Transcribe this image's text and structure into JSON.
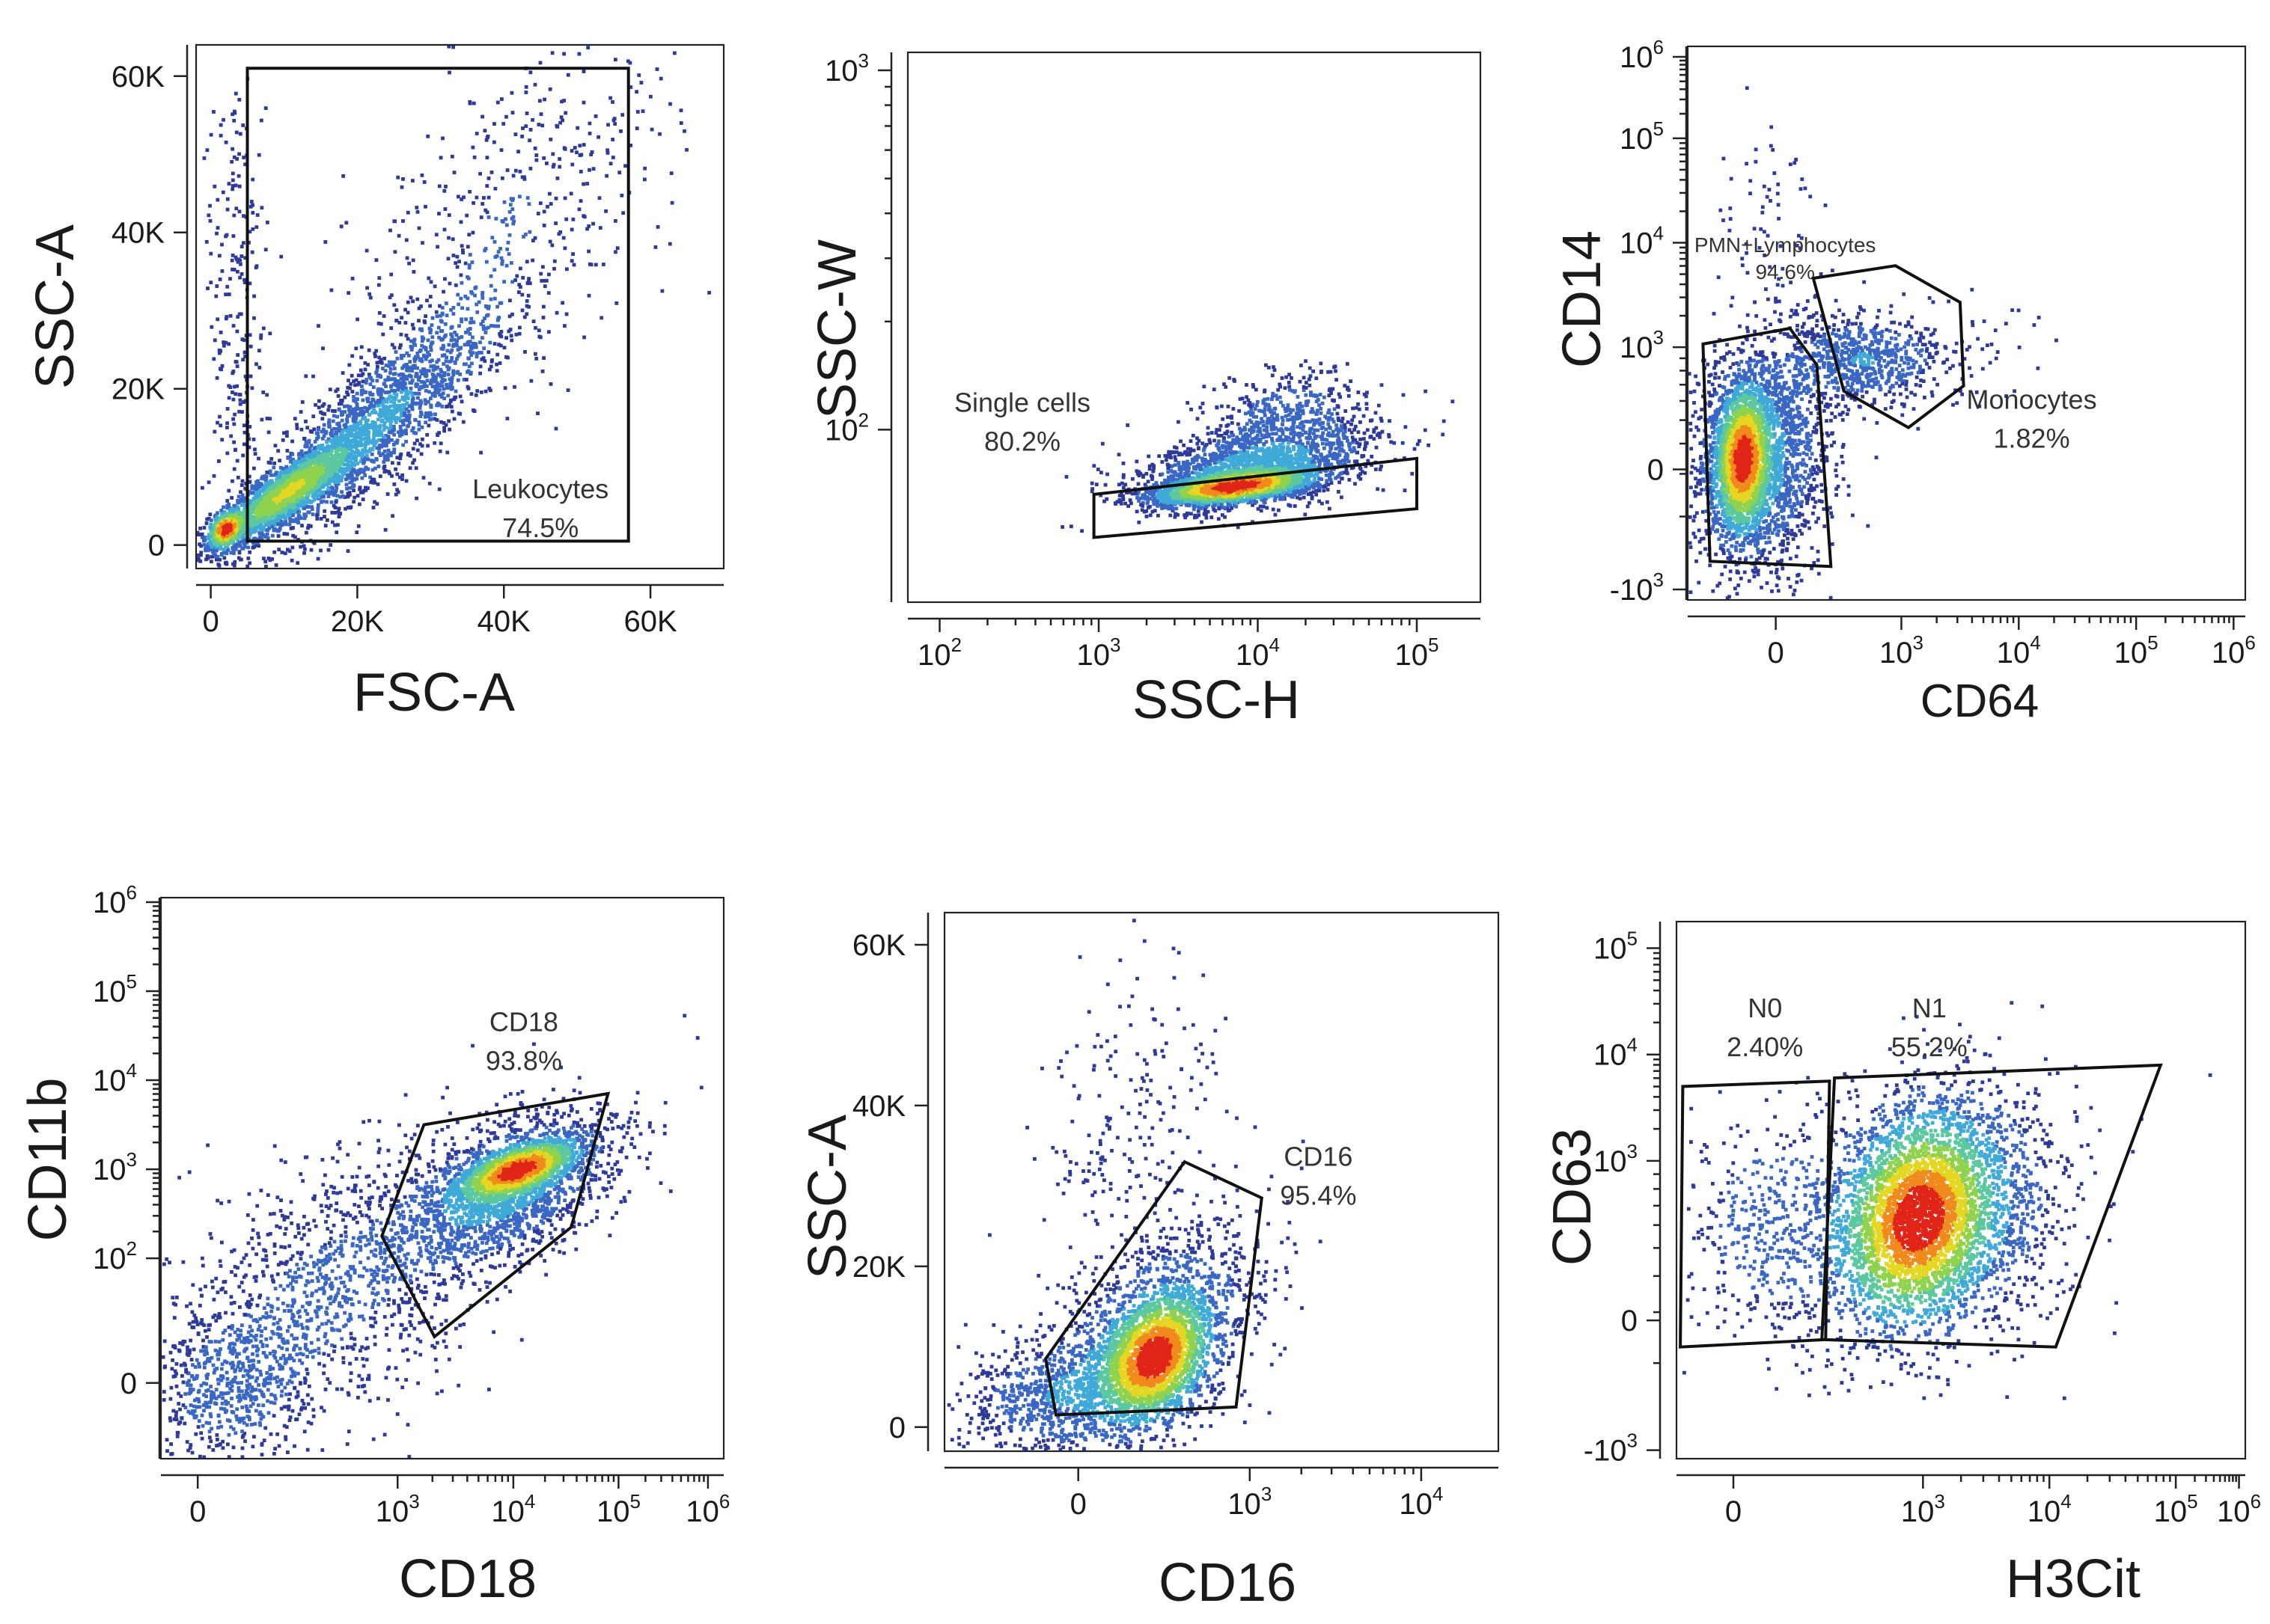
{
  "figure": {
    "colormap": [
      "#2e3a9a",
      "#3a67c4",
      "#3fa9d8",
      "#5cc8a0",
      "#8ed24e",
      "#e3d724",
      "#f08a1c",
      "#e02417"
    ],
    "frame_color": "#222222",
    "gate_color": "#111111"
  },
  "chart_data": [
    {
      "id": "p1",
      "type": "scatter",
      "subtype": "density-dot-plot",
      "xlabel": "FSC-A",
      "ylabel": "SSC-A",
      "xscale": "linear",
      "yscale": "linear",
      "xlim": [
        -2000,
        70000
      ],
      "ylim": [
        -3000,
        64000
      ],
      "xticks": [
        {
          "v": 0,
          "t": "0"
        },
        {
          "v": 20000,
          "t": "20K"
        },
        {
          "v": 40000,
          "t": "40K"
        },
        {
          "v": 60000,
          "t": "60K"
        }
      ],
      "yticks": [
        {
          "v": 0,
          "t": "0"
        },
        {
          "v": 20000,
          "t": "20K"
        },
        {
          "v": 40000,
          "t": "40K"
        },
        {
          "v": 60000,
          "t": "60K"
        }
      ],
      "left_axis": true,
      "gates": [
        {
          "name": "Leukocytes",
          "pct": "74.5%",
          "vertices": [
            [
              5000,
              61000
            ],
            [
              57000,
              61000
            ],
            [
              57000,
              500
            ],
            [
              5000,
              500
            ]
          ],
          "label_at": [
            45000,
            6000
          ]
        }
      ],
      "populations": [
        {
          "n": 2000,
          "cx": 10000,
          "cy": 6500,
          "sx": 5000,
          "sy": 3500,
          "rho": 0.85,
          "w": 3
        },
        {
          "n": 1800,
          "cx": 22000,
          "cy": 15000,
          "sx": 9000,
          "sy": 8000,
          "rho": 0.85,
          "w": 1
        },
        {
          "n": 500,
          "cx": 40000,
          "cy": 40000,
          "sx": 12000,
          "sy": 13000,
          "rho": 0.6,
          "w": 0.4
        },
        {
          "n": 300,
          "cx": 2000,
          "cy": 2000,
          "sx": 1200,
          "sy": 1200,
          "rho": 0.3,
          "w": 5
        },
        {
          "n": 250,
          "cx": 3500,
          "cy": 30000,
          "sx": 2000,
          "sy": 18000,
          "rho": 0.0,
          "w": 0.3
        }
      ]
    },
    {
      "id": "p2",
      "type": "scatter",
      "subtype": "density-dot-plot",
      "xlabel": "SSC-H",
      "ylabel": "SSC-W",
      "xscale": "log",
      "yscale": "log",
      "xlim": [
        1.8,
        5.4
      ],
      "ylim": [
        1.52,
        3.05
      ],
      "xticks": [
        {
          "v": 2,
          "t": "10",
          "sup": "2"
        },
        {
          "v": 3,
          "t": "10",
          "sup": "3"
        },
        {
          "v": 4,
          "t": "10",
          "sup": "4"
        },
        {
          "v": 5,
          "t": "10",
          "sup": "5"
        }
      ],
      "yticks": [
        {
          "v": 2,
          "t": "10",
          "sup": "2"
        },
        {
          "v": 3,
          "t": "10",
          "sup": "3"
        }
      ],
      "left_axis": false,
      "gates": [
        {
          "name": "Single cells",
          "pct": "80.2%",
          "vertices": [
            [
              2.97,
              1.82
            ],
            [
              5.0,
              1.92
            ],
            [
              5.0,
              1.78
            ],
            [
              2.97,
              1.7
            ]
          ],
          "label_at": [
            2.52,
            2.05
          ]
        }
      ],
      "populations": [
        {
          "n": 2400,
          "cx": 3.85,
          "cy": 1.84,
          "sx": 0.25,
          "sy": 0.025,
          "rho": 0.5,
          "w": 4
        },
        {
          "n": 1600,
          "cx": 4.0,
          "cy": 1.9,
          "sx": 0.38,
          "sy": 0.06,
          "rho": 0.45,
          "w": 1
        },
        {
          "n": 350,
          "cx": 4.2,
          "cy": 2.05,
          "sx": 0.25,
          "sy": 0.06,
          "rho": 0.2,
          "w": 0.5
        }
      ]
    },
    {
      "id": "p3",
      "type": "scatter",
      "subtype": "density-dot-plot",
      "xlabel": "CD64",
      "ylabel": "CD14",
      "xscale": "biexponential",
      "yscale": "biexponential",
      "xlim": [
        -0.75,
        4.0
      ],
      "ylim": [
        -1.25,
        4.05
      ],
      "xticks": [
        {
          "v": 0,
          "t": "0"
        },
        {
          "v": 1.07,
          "t": "10",
          "sup": "3"
        },
        {
          "v": 2.07,
          "t": "10",
          "sup": "4"
        },
        {
          "v": 3.07,
          "t": "10",
          "sup": "5"
        },
        {
          "v": 3.9,
          "t": "10",
          "sup": "6"
        }
      ],
      "yticks": [
        {
          "v": 3.95,
          "t": "10",
          "sup": "6"
        },
        {
          "v": 3.17,
          "t": "10",
          "sup": "5"
        },
        {
          "v": 2.17,
          "t": "10",
          "sup": "4"
        },
        {
          "v": 1.17,
          "t": "10",
          "sup": "3"
        },
        {
          "v": 0,
          "t": "0"
        },
        {
          "v": -1.15,
          "t": "-10",
          "sup": "3"
        }
      ],
      "left_axis": true,
      "gates": [
        {
          "name": "PMN+Lymphocytes",
          "pct": "94.6%",
          "vertices": [
            [
              -0.62,
              1.2
            ],
            [
              0.12,
              1.35
            ],
            [
              0.35,
              1.0
            ],
            [
              0.47,
              -0.93
            ],
            [
              -0.56,
              -0.88
            ]
          ],
          "label_at": [
            0.08,
            2.08
          ]
        },
        {
          "name": "Monocytes",
          "pct": "1.82%",
          "vertices": [
            [
              0.32,
              1.83
            ],
            [
              1.02,
              1.95
            ],
            [
              1.57,
              1.6
            ],
            [
              1.6,
              0.8
            ],
            [
              1.13,
              0.4
            ],
            [
              0.58,
              0.75
            ]
          ],
          "label_at": [
            2.18,
            0.58
          ]
        }
      ],
      "populations": [
        {
          "n": 1600,
          "cx": -0.28,
          "cy": 0.1,
          "sx": 0.12,
          "sy": 0.35,
          "rho": 0.1,
          "w": 4
        },
        {
          "n": 2200,
          "cx": -0.15,
          "cy": 0.1,
          "sx": 0.3,
          "sy": 0.55,
          "rho": 0.1,
          "w": 1
        },
        {
          "n": 700,
          "cx": 0.75,
          "cy": 1.05,
          "sx": 0.35,
          "sy": 0.22,
          "rho": 0.0,
          "w": 0.8
        },
        {
          "n": 60,
          "cx": -0.05,
          "cy": 2.55,
          "sx": 0.22,
          "sy": 0.45,
          "rho": 0.0,
          "w": 0.3
        },
        {
          "n": 40,
          "cx": 1.7,
          "cy": 1.3,
          "sx": 0.3,
          "sy": 0.3,
          "rho": 0.0,
          "w": 0.2
        }
      ]
    },
    {
      "id": "p4",
      "type": "scatter",
      "subtype": "density-dot-plot",
      "xlabel": "CD18",
      "ylabel": "CD11b",
      "xscale": "biexponential",
      "yscale": "biexponential",
      "xlim": [
        -0.35,
        5.0
      ],
      "ylim": [
        -1.25,
        5.05
      ],
      "xticks": [
        {
          "v": 0,
          "t": "0"
        },
        {
          "v": 1.9,
          "t": "10",
          "sup": "3"
        },
        {
          "v": 3.0,
          "t": "10",
          "sup": "4"
        },
        {
          "v": 4.0,
          "t": "10",
          "sup": "5"
        },
        {
          "v": 4.85,
          "t": "10",
          "sup": "6"
        }
      ],
      "yticks": [
        {
          "v": 5.0,
          "t": "10",
          "sup": "6"
        },
        {
          "v": 4.0,
          "t": "10",
          "sup": "5"
        },
        {
          "v": 3.0,
          "t": "10",
          "sup": "4"
        },
        {
          "v": 2.0,
          "t": "10",
          "sup": "3"
        },
        {
          "v": 1.0,
          "t": "10",
          "sup": "2"
        },
        {
          "v": -0.4,
          "t": "0"
        }
      ],
      "left_axis": true,
      "gates": [
        {
          "name": "CD18",
          "pct": "93.8%",
          "vertices": [
            [
              2.15,
              2.5
            ],
            [
              3.9,
              2.85
            ],
            [
              3.55,
              1.35
            ],
            [
              2.25,
              0.12
            ],
            [
              1.75,
              1.25
            ]
          ],
          "label_at": [
            3.1,
            3.55
          ]
        }
      ],
      "populations": [
        {
          "n": 1400,
          "cx": 3.05,
          "cy": 2.0,
          "sx": 0.28,
          "sy": 0.17,
          "rho": 0.6,
          "w": 4
        },
        {
          "n": 1800,
          "cx": 2.9,
          "cy": 1.75,
          "sx": 0.55,
          "sy": 0.45,
          "rho": 0.55,
          "w": 1
        },
        {
          "n": 1200,
          "cx": 1.2,
          "cy": 0.55,
          "sx": 0.8,
          "sy": 0.85,
          "rho": 0.45,
          "w": 0.4
        },
        {
          "n": 450,
          "cx": 0.3,
          "cy": -0.5,
          "sx": 0.35,
          "sy": 0.4,
          "rho": 0.1,
          "w": 0.5
        }
      ]
    },
    {
      "id": "p5",
      "type": "scatter",
      "subtype": "density-dot-plot",
      "xlabel": "CD16",
      "ylabel": "SSC-A",
      "xscale": "biexponential",
      "yscale": "linear",
      "xlim": [
        -0.78,
        2.45
      ],
      "ylim": [
        -3000,
        64000
      ],
      "xticks": [
        {
          "v": 0,
          "t": "0"
        },
        {
          "v": 1.0,
          "t": "10",
          "sup": "3"
        },
        {
          "v": 2.0,
          "t": "10",
          "sup": "4"
        }
      ],
      "yticks": [
        {
          "v": 0,
          "t": "0"
        },
        {
          "v": 20000,
          "t": "20K"
        },
        {
          "v": 40000,
          "t": "40K"
        },
        {
          "v": 60000,
          "t": "60K"
        }
      ],
      "left_axis": false,
      "gates": [
        {
          "name": "CD16",
          "pct": "95.4%",
          "vertices": [
            [
              -0.19,
              8500
            ],
            [
              0.62,
              33000
            ],
            [
              1.07,
              28500
            ],
            [
              0.92,
              2500
            ],
            [
              -0.13,
              1500
            ]
          ],
          "label_at": [
            1.4,
            32500
          ]
        }
      ],
      "populations": [
        {
          "n": 1400,
          "cx": 0.45,
          "cy": 8500,
          "sx": 0.16,
          "sy": 4000,
          "rho": 0.3,
          "w": 4
        },
        {
          "n": 1900,
          "cx": 0.4,
          "cy": 10000,
          "sx": 0.32,
          "sy": 7000,
          "rho": 0.55,
          "w": 1
        },
        {
          "n": 500,
          "cx": -0.2,
          "cy": 4000,
          "sx": 0.25,
          "sy": 3500,
          "rho": 0.2,
          "w": 0.6
        },
        {
          "n": 230,
          "cx": 0.3,
          "cy": 38000,
          "sx": 0.3,
          "sy": 12000,
          "rho": 0.0,
          "w": 0.2
        }
      ]
    },
    {
      "id": "p6",
      "type": "scatter",
      "subtype": "density-dot-plot",
      "xlabel": "H3Cit",
      "ylabel": "CD63",
      "xscale": "biexponential",
      "yscale": "biexponential",
      "xlim": [
        -0.45,
        4.05
      ],
      "ylim": [
        -1.3,
        3.75
      ],
      "xticks": [
        {
          "v": 0,
          "t": "0"
        },
        {
          "v": 1.5,
          "t": "10",
          "sup": "3"
        },
        {
          "v": 2.5,
          "t": "10",
          "sup": "4"
        },
        {
          "v": 3.5,
          "t": "10",
          "sup": "5"
        },
        {
          "v": 4.0,
          "t": "10",
          "sup": "6"
        }
      ],
      "yticks": [
        {
          "v": 3.5,
          "t": "10",
          "sup": "5"
        },
        {
          "v": 2.5,
          "t": "10",
          "sup": "4"
        },
        {
          "v": 1.5,
          "t": "10",
          "sup": "3"
        },
        {
          "v": 0,
          "t": "0"
        },
        {
          "v": -1.22,
          "t": "-10",
          "sup": "3"
        }
      ],
      "left_axis": false,
      "gates": [
        {
          "name": "N0",
          "pct": "2.40%",
          "vertices": [
            [
              -0.4,
              2.2
            ],
            [
              0.76,
              2.25
            ],
            [
              0.73,
              -0.18
            ],
            [
              -0.42,
              -0.25
            ]
          ],
          "label_at": [
            0.25,
            2.85
          ]
        },
        {
          "name": "N1",
          "pct": "55.2%",
          "vertices": [
            [
              0.8,
              2.28
            ],
            [
              3.38,
              2.4
            ],
            [
              2.55,
              -0.25
            ],
            [
              0.7,
              -0.18
            ]
          ],
          "label_at": [
            1.55,
            2.85
          ]
        }
      ],
      "populations": [
        {
          "n": 1900,
          "cx": 1.45,
          "cy": 0.95,
          "sx": 0.3,
          "sy": 0.5,
          "rho": 0.2,
          "w": 3
        },
        {
          "n": 2400,
          "cx": 1.6,
          "cy": 1.0,
          "sx": 0.5,
          "sy": 0.6,
          "rho": 0.15,
          "w": 1
        },
        {
          "n": 380,
          "cx": 0.3,
          "cy": 0.9,
          "sx": 0.35,
          "sy": 0.55,
          "rho": 0.1,
          "w": 0.5
        }
      ]
    }
  ]
}
